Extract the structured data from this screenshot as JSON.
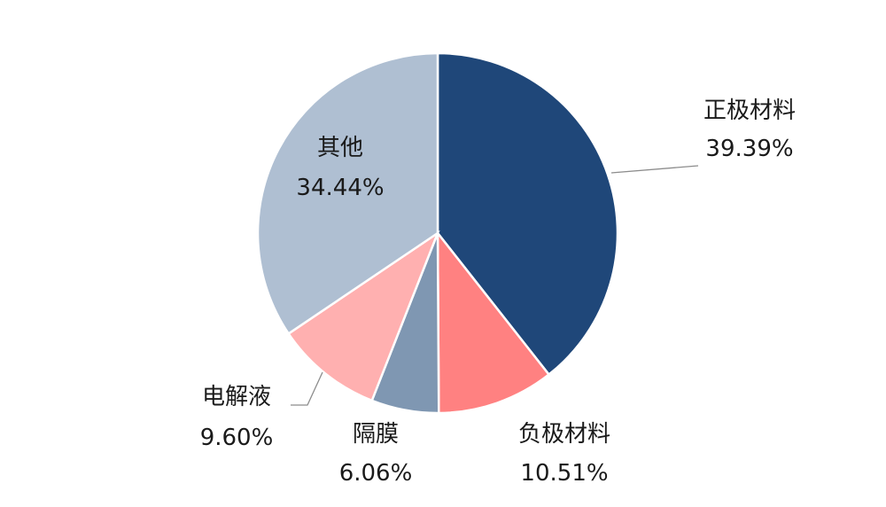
{
  "chart_data": {
    "type": "pie",
    "slices": [
      {
        "label": "正极材料",
        "value": 39.39,
        "value_text": "39.39%",
        "color": "#1f4779"
      },
      {
        "label": "负极材料",
        "value": 10.51,
        "value_text": "10.51%",
        "color": "#ff8181"
      },
      {
        "label": "隔膜",
        "value": 6.06,
        "value_text": "6.06%",
        "color": "#7f97b2"
      },
      {
        "label": "电解液",
        "value": 9.6,
        "value_text": "9.60%",
        "color": "#ffb0b0"
      },
      {
        "label": "其他",
        "value": 34.44,
        "value_text": "34.44%",
        "color": "#afbfd2"
      }
    ],
    "start_angle": "12 o'clock",
    "direction": "clockwise"
  }
}
